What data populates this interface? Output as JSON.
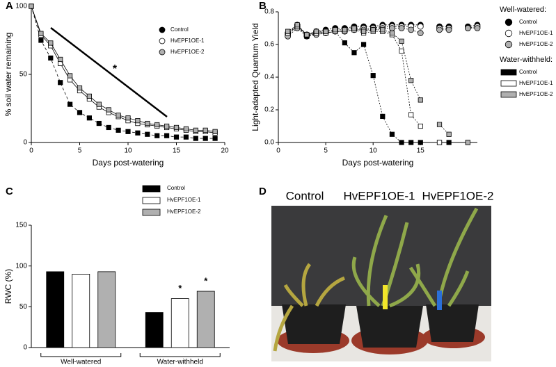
{
  "chart_data": [
    {
      "type": "line",
      "panel": "A",
      "xlabel": "Days post-watering",
      "ylabel": "% soil water remaining",
      "annotation": "*",
      "x": [
        0,
        1,
        2,
        3,
        4,
        5,
        6,
        7,
        8,
        9,
        10,
        11,
        12,
        13,
        14,
        15,
        16,
        17,
        18,
        19
      ],
      "xlim": [
        0,
        20
      ],
      "xticks": [
        0,
        5,
        10,
        15,
        20
      ],
      "ylim": [
        0,
        100
      ],
      "yticks": [
        0,
        50,
        100
      ],
      "series": [
        {
          "name": "Control",
          "color": "#000000",
          "marker": "square",
          "line_style": "dashed",
          "values": [
            100,
            75,
            62,
            44,
            28,
            22,
            18,
            14,
            11,
            9,
            8,
            7,
            6,
            5,
            5,
            4,
            4,
            3,
            3,
            3
          ]
        },
        {
          "name": "HvEPF1OE-1",
          "color": "#ffffff",
          "marker": "square",
          "line_style": "solid",
          "values": [
            100,
            79,
            71,
            58,
            46,
            38,
            32,
            26,
            22,
            19,
            16,
            14,
            13,
            12,
            11,
            10,
            9,
            8,
            8,
            7
          ]
        },
        {
          "name": "HvEPF1OE-2",
          "color": "#b0b0b0",
          "marker": "square",
          "line_style": "solid",
          "values": [
            100,
            80,
            73,
            61,
            49,
            40,
            34,
            28,
            24,
            20,
            18,
            16,
            14,
            13,
            12,
            11,
            10,
            9,
            9,
            8
          ]
        }
      ]
    },
    {
      "type": "line",
      "panel": "B",
      "xlabel": "Days post-watering",
      "ylabel": "Light-adapted Quantum Yield",
      "x": [
        1,
        2,
        3,
        4,
        5,
        6,
        7,
        8,
        9,
        10,
        11,
        12,
        13,
        14,
        15,
        16,
        17,
        18,
        19,
        20,
        21
      ],
      "xlim": [
        0,
        21
      ],
      "xticks": [
        0,
        5,
        10,
        15
      ],
      "ylim": [
        0,
        0.8
      ],
      "yticks": [
        {
          "value": 0,
          "label": "0.0"
        },
        {
          "value": 0.2,
          "label": "0.2"
        },
        {
          "value": 0.4,
          "label": "0.4"
        },
        {
          "value": 0.6,
          "label": "0.6"
        },
        {
          "value": 0.8,
          "label": "0.8"
        }
      ],
      "series_groups": [
        {
          "title": "Well-watered:",
          "series": [
            {
              "name": "Control",
              "color": "#000000",
              "marker": "circle",
              "values": [
                0.67,
                0.72,
                0.66,
                0.68,
                0.69,
                0.7,
                0.7,
                0.71,
                0.71,
                0.71,
                0.72,
                0.72,
                0.72,
                0.72,
                0.72,
                null,
                0.71,
                0.71,
                null,
                0.71,
                0.72
              ]
            },
            {
              "name": "HvEPF1OE-1",
              "color": "#ffffff",
              "marker": "circle",
              "values": [
                0.66,
                0.71,
                0.66,
                0.67,
                0.68,
                0.69,
                0.69,
                0.7,
                0.7,
                0.7,
                0.71,
                0.71,
                0.71,
                0.71,
                0.71,
                null,
                0.7,
                0.7,
                null,
                0.7,
                0.71
              ]
            },
            {
              "name": "HvEPF1OE-2",
              "color": "#b0b0b0",
              "marker": "circle",
              "values": [
                0.65,
                0.7,
                0.65,
                0.66,
                0.67,
                0.68,
                0.68,
                0.69,
                0.69,
                0.69,
                0.7,
                0.7,
                0.7,
                0.69,
                0.67,
                null,
                0.69,
                0.69,
                null,
                0.7,
                0.7
              ]
            }
          ]
        },
        {
          "title": "Water-withheld:",
          "series": [
            {
              "name": "Control",
              "color": "#000000",
              "marker": "square",
              "values": [
                0.67,
                0.71,
                0.65,
                0.67,
                0.67,
                0.68,
                0.61,
                0.55,
                0.6,
                0.41,
                0.16,
                0.05,
                0.0,
                0.0,
                0.0,
                null,
                0.0,
                0.0,
                null,
                0.0,
                null
              ]
            },
            {
              "name": "HvEPF1OE-1",
              "color": "#ffffff",
              "marker": "square",
              "values": [
                0.67,
                0.71,
                0.66,
                0.67,
                0.67,
                0.68,
                0.68,
                0.69,
                0.67,
                0.68,
                0.68,
                0.66,
                0.56,
                0.17,
                0.1,
                null,
                0.0,
                null,
                null,
                null,
                null
              ]
            },
            {
              "name": "HvEPF1OE-2",
              "color": "#b0b0b0",
              "marker": "square",
              "values": [
                0.68,
                0.72,
                0.66,
                0.68,
                0.68,
                0.69,
                0.69,
                0.7,
                0.68,
                0.69,
                0.69,
                0.67,
                0.62,
                0.38,
                0.26,
                null,
                0.11,
                0.05,
                null,
                0.0,
                null
              ]
            }
          ]
        }
      ]
    },
    {
      "type": "bar",
      "panel": "C",
      "ylabel": "RWC (%)",
      "categories": [
        "Well-watered",
        "Water-withheld"
      ],
      "ylim": [
        0,
        150
      ],
      "yticks": [
        0,
        50,
        100,
        150
      ],
      "series": [
        {
          "name": "Control",
          "color": "#000000",
          "values": [
            93,
            43
          ],
          "significance": [
            null,
            null
          ]
        },
        {
          "name": "HvEPF1OE-1",
          "color": "#ffffff",
          "values": [
            90,
            60
          ],
          "significance": [
            null,
            "*"
          ]
        },
        {
          "name": "HvEPF1OE-2",
          "color": "#b0b0b0",
          "values": [
            93,
            69
          ],
          "significance": [
            null,
            "*"
          ]
        }
      ]
    }
  ],
  "photo_panel": {
    "panel": "D",
    "captions": [
      "Control",
      "HvEPF1OE-1",
      "HvEPF1OE-2"
    ]
  }
}
